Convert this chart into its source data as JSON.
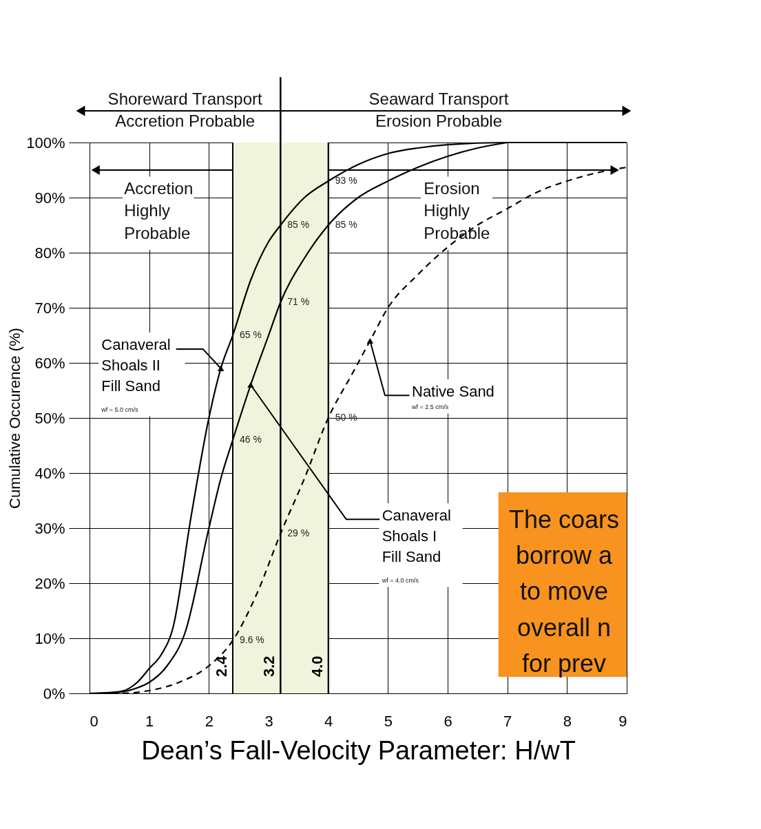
{
  "chart_data": {
    "type": "line",
    "xlabel": "Dean’s Fall-Velocity Parameter:  H/wT",
    "ylabel": "Cumulative Occurence (%)",
    "xlim": [
      0,
      9
    ],
    "xticks": [
      0,
      1,
      2,
      3,
      4,
      5,
      6,
      7,
      8,
      9
    ],
    "ylim": [
      0,
      100
    ],
    "yticks": [
      {
        "value": 0,
        "label": "0%"
      },
      {
        "value": 10,
        "label": "10%"
      },
      {
        "value": 20,
        "label": "20%"
      },
      {
        "value": 30,
        "label": "30%"
      },
      {
        "value": 40,
        "label": "40%"
      },
      {
        "value": 50,
        "label": "50%"
      },
      {
        "value": 60,
        "label": "60%"
      },
      {
        "value": 70,
        "label": "70%"
      },
      {
        "value": 80,
        "label": "80%"
      },
      {
        "value": 90,
        "label": "90%"
      },
      {
        "value": 100,
        "label": "100%"
      }
    ],
    "grid": true,
    "series": [
      {
        "name": "Canaveral\nShoals II\nFill Sand",
        "color": "#000000",
        "line_style": "solid",
        "x": [
          0,
          0.5,
          0.8,
          1,
          1.2,
          1.4,
          1.7,
          2,
          2.2,
          2.4,
          2.7,
          3,
          3.2,
          3.6,
          4,
          4.5,
          5,
          5.5,
          6,
          7,
          8,
          9
        ],
        "values": [
          0,
          0.3,
          2,
          4.5,
          7,
          12,
          32,
          50,
          59,
          65,
          75,
          82,
          85,
          90,
          93,
          96,
          98,
          99,
          99.6,
          100,
          100,
          100
        ]
      },
      {
        "name": "Canaveral\nShoals I\nFill Sand",
        "color": "#000000",
        "line_style": "solid",
        "x": [
          0.15,
          0.5,
          0.8,
          1,
          1.3,
          1.6,
          2,
          2.2,
          2.4,
          2.7,
          3,
          3.2,
          3.6,
          4,
          4.5,
          5,
          5.5,
          6,
          6.5,
          7
        ],
        "values": [
          0,
          0.2,
          1,
          2,
          5,
          11,
          30,
          39,
          46,
          56,
          65,
          71,
          79,
          85,
          90,
          93,
          95.5,
          97.5,
          99,
          100
        ]
      },
      {
        "name": "Native Sand",
        "color": "#000000",
        "line_style": "dashed",
        "x": [
          0,
          0.5,
          1,
          1.5,
          2,
          2.4,
          2.8,
          3.2,
          3.6,
          4,
          4.4,
          4.7,
          5,
          5.5,
          6,
          6.5,
          7,
          7.5,
          8,
          8.5,
          9
        ],
        "values": [
          0,
          0,
          0.5,
          2,
          5,
          9.6,
          18,
          29,
          39,
          50,
          58,
          64,
          70,
          76,
          81,
          85,
          88,
          91,
          93,
          94.5,
          95.5
        ]
      }
    ],
    "bands": [
      {
        "axis": "x",
        "from": 2.4,
        "to": 4.0,
        "color": "#f0f4dc"
      }
    ],
    "ref_lines": [
      {
        "axis": "x",
        "value": 2.4,
        "label": "2.4"
      },
      {
        "axis": "x",
        "value": 3.2,
        "label": "3.2"
      },
      {
        "axis": "x",
        "value": 4.0,
        "label": "4.0"
      }
    ],
    "annotations": [
      "Shoreward Transport",
      "Accretion Probable",
      "Seaward Transport",
      "Erosion Probable",
      "Accretion\nHighly\nProbable",
      "Erosion\nHighly\nProbable",
      "wf = 5.0 cm/s",
      "wf = 4.0 cm/s",
      "wf = 2.5 cm/s",
      "The coars\nborrow a\nto move\noverall n\nfor prev",
      {
        "text": "93 %",
        "x": 4.0,
        "y": 93
      },
      {
        "text": "85 %",
        "x": 3.2,
        "y": 85
      },
      {
        "text": "85 %",
        "x": 4.0,
        "y": 85
      },
      {
        "text": "71 %",
        "x": 3.2,
        "y": 71
      },
      {
        "text": "65 %",
        "x": 2.4,
        "y": 65
      },
      {
        "text": "46 %",
        "x": 2.4,
        "y": 46
      },
      {
        "text": "50 %",
        "x": 4.0,
        "y": 50
      },
      {
        "text": "29 %",
        "x": 3.2,
        "y": 29
      },
      {
        "text": "9.6 %",
        "x": 2.4,
        "y": 9.6
      }
    ]
  }
}
